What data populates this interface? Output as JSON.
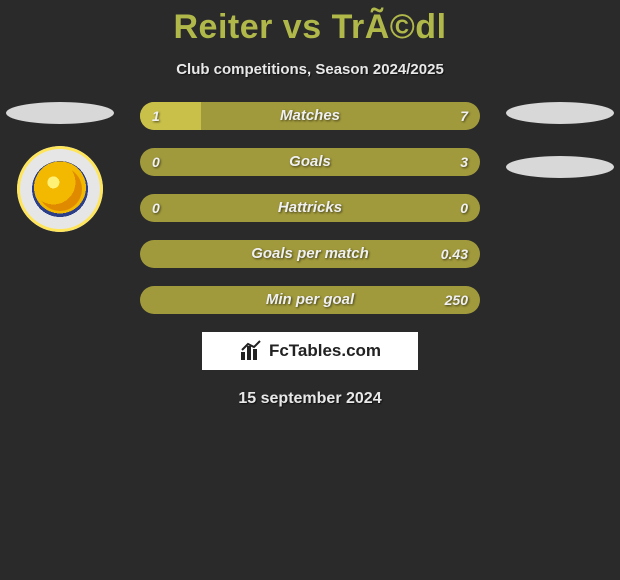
{
  "title": "Reiter vs TrÃ©dl",
  "subtitle": "Club competitions, Season 2024/2025",
  "date": "15 september 2024",
  "logo_text": "FcTables.com",
  "colors": {
    "background": "#2a2a2a",
    "bar_base": "#a19a3c",
    "bar_accent": "#c9c04a",
    "title_color": "#b0b84a",
    "text_color": "#e8e8e8"
  },
  "bars": [
    {
      "label": "Matches",
      "left_val": "1",
      "right_val": "7",
      "left_pct": 18,
      "left_color": "#c9c04a",
      "right_color": "#a19a3c"
    },
    {
      "label": "Goals",
      "left_val": "0",
      "right_val": "3",
      "left_pct": 0,
      "left_color": "#c9c04a",
      "right_color": "#a19a3c"
    },
    {
      "label": "Hattricks",
      "left_val": "0",
      "right_val": "0",
      "left_pct": 0,
      "left_color": "#c9c04a",
      "right_color": "#a19a3c"
    },
    {
      "label": "Goals per match",
      "left_val": "",
      "right_val": "0.43",
      "left_pct": 0,
      "left_color": "#c9c04a",
      "right_color": "#a19a3c"
    },
    {
      "label": "Min per goal",
      "left_val": "",
      "right_val": "250",
      "left_pct": 0,
      "left_color": "#c9c04a",
      "right_color": "#a19a3c"
    }
  ]
}
